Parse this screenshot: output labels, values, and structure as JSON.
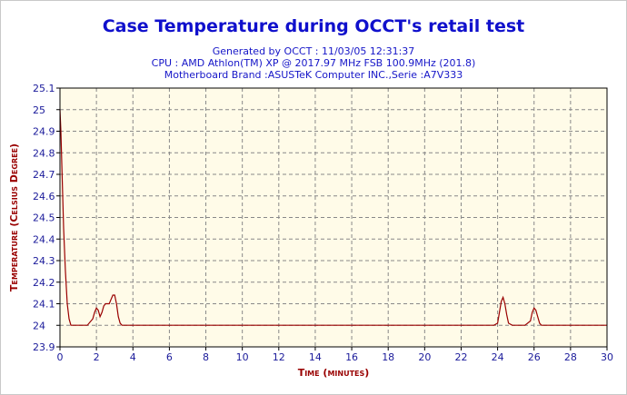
{
  "header": {
    "title": "Case Temperature during OCCT's retail test",
    "generated": "Generated by OCCT : 11/03/05 12:31:37",
    "cpu": "CPU : AMD Athlon(TM) XP @ 2017.97 MHz FSB 100.9MHz (201.8)",
    "motherboard": "Motherboard Brand :ASUSTeK Computer INC.,Serie :A7V333"
  },
  "chart_data": {
    "type": "line",
    "xlabel": "Time (minutes)",
    "ylabel": "Temperature (Celsius Degree)",
    "xlim": [
      0,
      30
    ],
    "ylim": [
      23.9,
      25.1
    ],
    "xticks": [
      0,
      2,
      4,
      6,
      8,
      10,
      12,
      14,
      16,
      18,
      20,
      22,
      24,
      26,
      28,
      30
    ],
    "yticks": [
      23.9,
      24,
      24.1,
      24.2,
      24.3,
      24.4,
      24.5,
      24.6,
      24.7,
      24.8,
      24.9,
      25,
      25.1
    ],
    "grid": true,
    "colors": {
      "line": "#990000",
      "plot_bg": "#fffbe8",
      "grid": "#888888",
      "axis_label": "#990000",
      "title": "#1010cc"
    },
    "series": [
      {
        "x": [
          0,
          0.05,
          0.1,
          0.15,
          0.2,
          0.3,
          0.4,
          0.5,
          0.6,
          0.8,
          1.0,
          1.2,
          1.5,
          1.8,
          1.9,
          2.0,
          2.1,
          2.2,
          2.3,
          2.4,
          2.5,
          2.6,
          2.7,
          2.8,
          2.9,
          3.0,
          3.1,
          3.2,
          3.3,
          3.4,
          3.5,
          3.6,
          3.8,
          4.0,
          6,
          10,
          15,
          20,
          23.8,
          24.0,
          24.1,
          24.2,
          24.3,
          24.4,
          24.5,
          24.6,
          24.8,
          25.0,
          25.5,
          25.8,
          25.9,
          26.0,
          26.1,
          26.2,
          26.3,
          26.4,
          26.6,
          27,
          28,
          29,
          30
        ],
        "y": [
          25.0,
          24.9,
          24.75,
          24.6,
          24.45,
          24.25,
          24.1,
          24.03,
          24.0,
          24.0,
          24.0,
          24.0,
          24.0,
          24.03,
          24.06,
          24.08,
          24.07,
          24.04,
          24.06,
          24.09,
          24.1,
          24.1,
          24.1,
          24.12,
          24.14,
          24.14,
          24.1,
          24.04,
          24.01,
          24.0,
          24.0,
          24.0,
          24.0,
          24.0,
          24.0,
          24.0,
          24.0,
          24.0,
          24.0,
          24.01,
          24.06,
          24.11,
          24.13,
          24.1,
          24.05,
          24.01,
          24.0,
          24.0,
          24.0,
          24.02,
          24.06,
          24.08,
          24.07,
          24.04,
          24.01,
          24.0,
          24.0,
          24.0,
          24.0,
          24.0,
          24.0
        ]
      }
    ]
  }
}
